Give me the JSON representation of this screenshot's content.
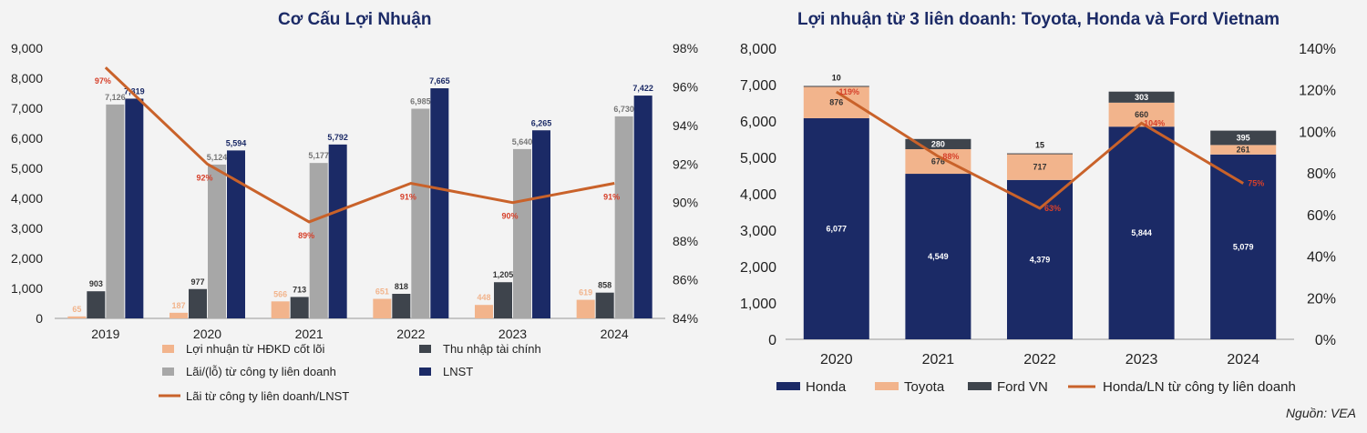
{
  "colors": {
    "core": "#f2b48c",
    "fin": "#3e444c",
    "jv": "#a7a7a7",
    "lnst": "#1b2a66",
    "line": "#c9622a",
    "honda": "#1b2a66",
    "toyota": "#f2b48c",
    "ford": "#3e444c",
    "title": "#1b2a66"
  },
  "chart_data": [
    {
      "type": "bar",
      "title": "Cơ Cấu Lợi Nhuận",
      "categories": [
        "2019",
        "2020",
        "2021",
        "2022",
        "2023",
        "2024"
      ],
      "series": [
        {
          "name": "Lợi nhuận từ HĐKD cốt lõi",
          "values": [
            65,
            187,
            566,
            651,
            448,
            619
          ],
          "labels": [
            "65",
            "187",
            "566",
            "651",
            "448",
            "619"
          ]
        },
        {
          "name": "Thu nhập tài chính",
          "values": [
            903,
            977,
            713,
            818,
            1205,
            858
          ],
          "labels": [
            "903",
            "977",
            "713",
            "818",
            "1,205",
            "858"
          ]
        },
        {
          "name": "Lãi/(lỗ) từ công ty liên doanh",
          "values": [
            7126,
            5124,
            5177,
            6985,
            5640,
            6730
          ],
          "labels": [
            "7,126",
            "5,124",
            "5,177",
            "6,985",
            "5,640",
            "6,730"
          ]
        },
        {
          "name": "LNST",
          "values": [
            7319,
            5594,
            5792,
            7665,
            6265,
            7422
          ],
          "labels": [
            "7,319",
            "5,594",
            "5,792",
            "7,665",
            "6,265",
            "7,422"
          ]
        }
      ],
      "line_series": {
        "name": "Lãi từ công ty liên doanh/LNST",
        "values": [
          97,
          92,
          89,
          91,
          90,
          91
        ],
        "labels": [
          "97%",
          "92%",
          "89%",
          "91%",
          "90%",
          "91%"
        ]
      },
      "y_ticks": [
        "0",
        "1,000",
        "2,000",
        "3,000",
        "4,000",
        "5,000",
        "6,000",
        "7,000",
        "8,000",
        "9,000"
      ],
      "y2_ticks": [
        "84%",
        "86%",
        "88%",
        "90%",
        "92%",
        "94%",
        "96%",
        "98%"
      ],
      "ylim": [
        0,
        9000
      ],
      "y2lim": [
        84,
        98
      ],
      "legend": [
        "Lợi nhuận từ HĐKD cốt lõi",
        "Thu nhập tài chính",
        "Lãi/(lỗ) từ công ty liên doanh",
        "LNST",
        "Lãi từ công ty liên doanh/LNST"
      ]
    },
    {
      "type": "bar",
      "stacked": true,
      "title": "Lợi nhuận từ 3 liên doanh: Toyota, Honda và Ford Vietnam",
      "categories": [
        "2020",
        "2021",
        "2022",
        "2023",
        "2024"
      ],
      "series": [
        {
          "name": "Honda",
          "values": [
            6077,
            4549,
            4379,
            5844,
            5079
          ],
          "labels": [
            "6,077",
            "4,549",
            "4,379",
            "5,844",
            "5,079"
          ]
        },
        {
          "name": "Toyota",
          "values": [
            876,
            676,
            717,
            660,
            261
          ],
          "labels": [
            "876",
            "676",
            "717",
            "660",
            "261"
          ]
        },
        {
          "name": "Ford VN",
          "values": [
            10,
            280,
            15,
            303,
            395
          ],
          "labels": [
            "10",
            "280",
            "15",
            "303",
            "395"
          ]
        }
      ],
      "line_series": {
        "name": "Honda/LN từ công ty liên doanh",
        "values": [
          119,
          88,
          63,
          104,
          75
        ],
        "labels": [
          "119%",
          "88%",
          "63%",
          "104%",
          "75%"
        ]
      },
      "y_ticks": [
        "0",
        "1,000",
        "2,000",
        "3,000",
        "4,000",
        "5,000",
        "6,000",
        "7,000",
        "8,000"
      ],
      "y2_ticks": [
        "0%",
        "20%",
        "40%",
        "60%",
        "80%",
        "100%",
        "120%",
        "140%"
      ],
      "ylim": [
        0,
        8000
      ],
      "y2lim": [
        0,
        140
      ],
      "legend": [
        "Honda",
        "Toyota",
        "Ford VN",
        "Honda/LN từ công ty liên doanh"
      ]
    }
  ],
  "source": "Nguồn: VEA"
}
